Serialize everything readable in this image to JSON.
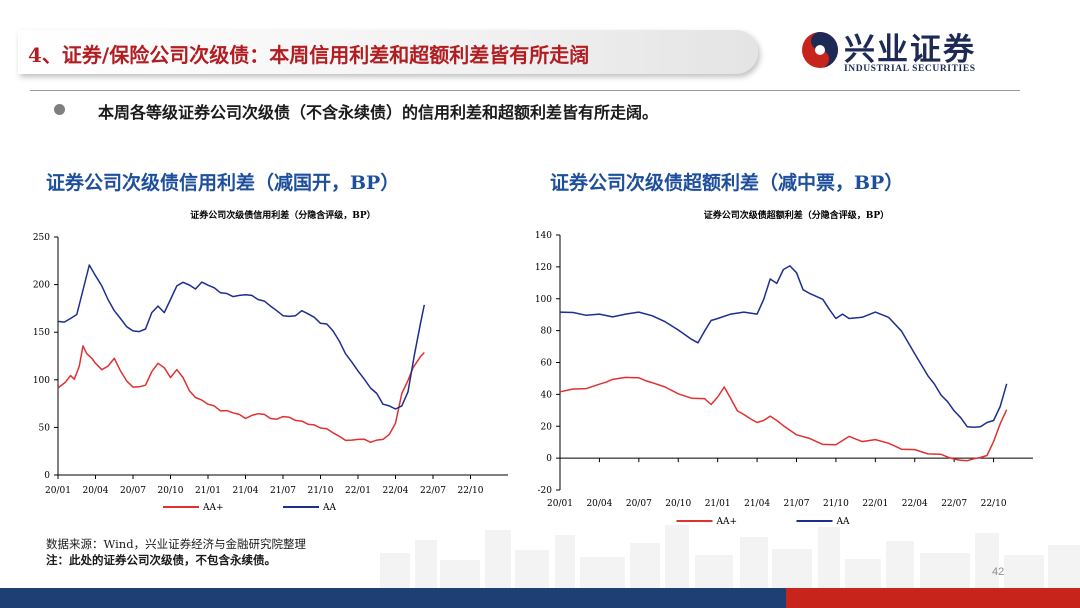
{
  "header": {
    "title": "4、证券/保险公司次级债：本周信用利差和超额利差皆有所走阔",
    "logo_cn": "兴业证券",
    "logo_en": "INDUSTRIAL SECURITIES"
  },
  "bullet": "本周各等级证券公司次级债（不含永续债）的信用利差和超额利差皆有所走阔。",
  "footer": {
    "source": "数据来源：Wind，兴业证券经济与金融研究院整理",
    "note": "注：此处的证券公司次级债，不包含永续债。",
    "page": "42"
  },
  "colors": {
    "AA+": "#e03131",
    "AA": "#1c2f8f",
    "title_red": "#b11d21",
    "title_blue": "#1e4f9c"
  },
  "chart_data": [
    {
      "type": "line",
      "heading": "证券公司次级债信用利差（减国开，BP）",
      "title": "证券公司次级债信用利差（分隐含评级，BP）",
      "x_ticks": [
        "20/01",
        "20/04",
        "20/07",
        "20/10",
        "21/01",
        "21/04",
        "21/07",
        "21/10",
        "22/01",
        "22/04",
        "22/07",
        "22/10"
      ],
      "x_range": [
        "2020-01",
        "2023-01"
      ],
      "ylim": [
        0,
        250
      ],
      "y_ticks": [
        0,
        50,
        100,
        150,
        200,
        250
      ],
      "legend_position": "bottom",
      "series": [
        {
          "name": "AA+",
          "color": "#e03131",
          "points": [
            [
              0,
              92
            ],
            [
              0.6,
              97
            ],
            [
              1,
              105
            ],
            [
              1.3,
              100
            ],
            [
              1.7,
              115
            ],
            [
              2,
              135
            ],
            [
              2.3,
              128
            ],
            [
              2.7,
              122
            ],
            [
              3,
              118
            ],
            [
              3.5,
              110
            ],
            [
              4,
              115
            ],
            [
              4.5,
              122
            ],
            [
              5,
              110
            ],
            [
              5.5,
              98
            ],
            [
              6,
              93
            ],
            [
              6.5,
              92
            ],
            [
              7,
              95
            ],
            [
              7.5,
              108
            ],
            [
              8,
              118
            ],
            [
              8.5,
              112
            ],
            [
              9,
              103
            ],
            [
              9.5,
              110
            ],
            [
              10,
              103
            ],
            [
              10.5,
              88
            ],
            [
              11,
              82
            ],
            [
              11.5,
              78
            ],
            [
              12,
              75
            ],
            [
              12.5,
              72
            ],
            [
              13,
              68
            ],
            [
              13.5,
              67
            ],
            [
              14,
              66
            ],
            [
              14.5,
              63
            ],
            [
              15,
              60
            ],
            [
              15.5,
              62
            ],
            [
              16,
              65
            ],
            [
              16.5,
              63
            ],
            [
              17,
              60
            ],
            [
              17.5,
              58
            ],
            [
              18,
              62
            ],
            [
              18.5,
              60
            ],
            [
              19,
              58
            ],
            [
              19.5,
              56
            ],
            [
              20,
              54
            ],
            [
              20.5,
              52
            ],
            [
              21,
              50
            ],
            [
              21.5,
              48
            ],
            [
              22,
              45
            ],
            [
              22.5,
              40
            ],
            [
              23,
              37
            ],
            [
              23.5,
              36
            ],
            [
              24,
              38
            ],
            [
              24.5,
              37
            ],
            [
              25,
              35
            ],
            [
              25.5,
              36
            ],
            [
              26,
              38
            ],
            [
              26.5,
              42
            ],
            [
              27,
              55
            ],
            [
              27.5,
              85
            ],
            [
              28,
              100
            ],
            [
              28.4,
              112
            ],
            [
              29,
              125
            ],
            [
              29.3,
              128
            ]
          ]
        },
        {
          "name": "AA",
          "color": "#1c2f8f",
          "points": [
            [
              0,
              162
            ],
            [
              0.5,
              160
            ],
            [
              1,
              165
            ],
            [
              1.5,
              168
            ],
            [
              2,
              195
            ],
            [
              2.5,
              220
            ],
            [
              3,
              210
            ],
            [
              3.5,
              198
            ],
            [
              4,
              185
            ],
            [
              4.5,
              172
            ],
            [
              5,
              165
            ],
            [
              5.5,
              155
            ],
            [
              6,
              152
            ],
            [
              6.5,
              150
            ],
            [
              7,
              154
            ],
            [
              7.5,
              170
            ],
            [
              8,
              178
            ],
            [
              8.5,
              170
            ],
            [
              9,
              185
            ],
            [
              9.5,
              198
            ],
            [
              10,
              203
            ],
            [
              10.5,
              199
            ],
            [
              11,
              196
            ],
            [
              11.5,
              202
            ],
            [
              12,
              200
            ],
            [
              12.5,
              196
            ],
            [
              13,
              192
            ],
            [
              13.5,
              190
            ],
            [
              14,
              188
            ],
            [
              14.5,
              188
            ],
            [
              15,
              190
            ],
            [
              15.5,
              188
            ],
            [
              16,
              185
            ],
            [
              16.5,
              182
            ],
            [
              17,
              178
            ],
            [
              17.5,
              172
            ],
            [
              18,
              168
            ],
            [
              18.5,
              166
            ],
            [
              19,
              168
            ],
            [
              19.5,
              172
            ],
            [
              20,
              170
            ],
            [
              20.5,
              165
            ],
            [
              21,
              160
            ],
            [
              21.5,
              158
            ],
            [
              22,
              152
            ],
            [
              22.5,
              140
            ],
            [
              23,
              128
            ],
            [
              23.5,
              118
            ],
            [
              24,
              110
            ],
            [
              24.5,
              100
            ],
            [
              25,
              92
            ],
            [
              25.5,
              85
            ],
            [
              26,
              75
            ],
            [
              26.5,
              72
            ],
            [
              27,
              70
            ],
            [
              27.5,
              72
            ],
            [
              28,
              88
            ],
            [
              28.5,
              125
            ],
            [
              29,
              160
            ],
            [
              29.3,
              178
            ]
          ]
        }
      ]
    },
    {
      "type": "line",
      "heading": "证券公司次级债超额利差（减中票，BP）",
      "title": "证券公司次级债超额利差（分隐含评级，BP）",
      "x_ticks": [
        "20/01",
        "20/04",
        "20/07",
        "20/10",
        "21/01",
        "21/04",
        "21/07",
        "21/10",
        "22/01",
        "22/04",
        "22/07",
        "22/10"
      ],
      "x_range": [
        "2020-01",
        "2023-01"
      ],
      "ylim": [
        -20,
        140
      ],
      "y_ticks": [
        -20,
        0,
        20,
        40,
        60,
        80,
        100,
        120,
        140
      ],
      "legend_position": "bottom",
      "series": [
        {
          "name": "AA+",
          "color": "#e03131",
          "points": [
            [
              0,
              42
            ],
            [
              1,
              43
            ],
            [
              2,
              44
            ],
            [
              3,
              46
            ],
            [
              3.5,
              48
            ],
            [
              4,
              49
            ],
            [
              5,
              51
            ],
            [
              6,
              50
            ],
            [
              6.5,
              49
            ],
            [
              7,
              47
            ],
            [
              8,
              45
            ],
            [
              9,
              40
            ],
            [
              10,
              38
            ],
            [
              11,
              37
            ],
            [
              11.5,
              34
            ],
            [
              12,
              38
            ],
            [
              12.5,
              45
            ],
            [
              13,
              37
            ],
            [
              13.5,
              30
            ],
            [
              14,
              27
            ],
            [
              14.5,
              25
            ],
            [
              15,
              22
            ],
            [
              15.5,
              24
            ],
            [
              16,
              26
            ],
            [
              16.5,
              24
            ],
            [
              17,
              20
            ],
            [
              18,
              15
            ],
            [
              19,
              12
            ],
            [
              20,
              9
            ],
            [
              21,
              8
            ],
            [
              22,
              14
            ],
            [
              23,
              10
            ],
            [
              24,
              12
            ],
            [
              25,
              9
            ],
            [
              26,
              6
            ],
            [
              27,
              5
            ],
            [
              28,
              3
            ],
            [
              29,
              2
            ],
            [
              29.5,
              1
            ],
            [
              30,
              -1
            ],
            [
              30.5,
              -1
            ],
            [
              31,
              -2
            ],
            [
              31.5,
              0
            ],
            [
              32,
              0
            ],
            [
              32.5,
              2
            ],
            [
              33,
              10
            ],
            [
              33.5,
              22
            ],
            [
              34,
              30
            ]
          ]
        },
        {
          "name": "AA",
          "color": "#1c2f8f",
          "points": [
            [
              0,
              92
            ],
            [
              1,
              91
            ],
            [
              2,
              90
            ],
            [
              3,
              90
            ],
            [
              4,
              89
            ],
            [
              5,
              90
            ],
            [
              6,
              92
            ],
            [
              7,
              89
            ],
            [
              8,
              86
            ],
            [
              9,
              80
            ],
            [
              10,
              75
            ],
            [
              10.5,
              72
            ],
            [
              11,
              80
            ],
            [
              11.5,
              86
            ],
            [
              12,
              88
            ],
            [
              13,
              90
            ],
            [
              14,
              92
            ],
            [
              15,
              90
            ],
            [
              15.5,
              100
            ],
            [
              16,
              112
            ],
            [
              16.5,
              110
            ],
            [
              17,
              118
            ],
            [
              17.5,
              121
            ],
            [
              18,
              116
            ],
            [
              18.5,
              106
            ],
            [
              19,
              103
            ],
            [
              20,
              100
            ],
            [
              20.5,
              93
            ],
            [
              21,
              88
            ],
            [
              21.5,
              90
            ],
            [
              22,
              88
            ],
            [
              23,
              88
            ],
            [
              24,
              92
            ],
            [
              25,
              88
            ],
            [
              26,
              80
            ],
            [
              27,
              65
            ],
            [
              28,
              52
            ],
            [
              28.5,
              46
            ],
            [
              29,
              40
            ],
            [
              29.5,
              35
            ],
            [
              30,
              30
            ],
            [
              30.5,
              25
            ],
            [
              31,
              20
            ],
            [
              31.5,
              19
            ],
            [
              32,
              20
            ],
            [
              32.5,
              22
            ],
            [
              33,
              24
            ],
            [
              33.5,
              32
            ],
            [
              34,
              47
            ]
          ]
        }
      ]
    }
  ]
}
